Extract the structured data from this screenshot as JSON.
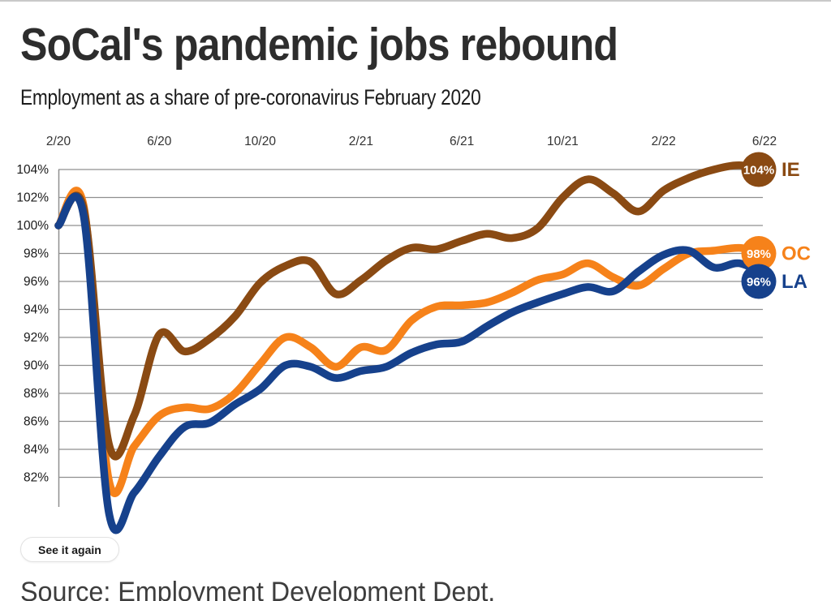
{
  "page": {
    "title": "SoCal's pandemic jobs rebound",
    "subtitle": "Employment as a share of pre-coronavirus February 2020",
    "replay_button": "See it again",
    "source": "Source: Employment Development Dept."
  },
  "colors": {
    "ie_brown": "#8a4a13",
    "oc_orange": "#f6821a",
    "la_navy": "#16418c",
    "grid": "#8f8f8f",
    "x_label": "#333333",
    "y_label": "#1a1a1a",
    "badge_text": "#ffffff"
  },
  "chart_data": {
    "type": "line",
    "title": "SoCal's pandemic jobs rebound",
    "subtitle": "Employment as a share of pre-coronavirus February 2020",
    "x_months": [
      "2/20",
      "3/20",
      "4/20",
      "5/20",
      "6/20",
      "7/20",
      "8/20",
      "9/20",
      "10/20",
      "11/20",
      "12/20",
      "1/21",
      "2/21",
      "3/21",
      "4/21",
      "5/21",
      "6/21",
      "7/21",
      "8/21",
      "9/21",
      "10/21",
      "11/21",
      "12/21",
      "1/22",
      "2/22",
      "3/22",
      "4/22",
      "5/22",
      "6/22"
    ],
    "x_ticks": [
      "2/20",
      "6/20",
      "10/20",
      "2/21",
      "6/21",
      "10/21",
      "2/22",
      "6/22"
    ],
    "x_tick_indices": [
      0,
      4,
      8,
      12,
      16,
      20,
      24,
      28
    ],
    "y_ticks": [
      "104%",
      "102%",
      "100%",
      "98%",
      "96%",
      "94%",
      "92%",
      "90%",
      "88%",
      "86%",
      "84%",
      "82%"
    ],
    "y_tick_values": [
      104,
      102,
      100,
      98,
      96,
      94,
      92,
      90,
      88,
      86,
      84,
      82
    ],
    "ylim": [
      79,
      105
    ],
    "grid": true,
    "legend_position": "right-end-badges",
    "series": [
      {
        "name": "IE",
        "badge": "104%",
        "end_value": 104,
        "color": "#8a4a13",
        "values": [
          100,
          101.2,
          84.4,
          86.4,
          92.2,
          91.0,
          91.9,
          93.5,
          95.9,
          97.1,
          97.4,
          95.1,
          96.1,
          97.5,
          98.4,
          98.3,
          98.9,
          99.4,
          99.1,
          99.8,
          102.0,
          103.3,
          102.3,
          101.0,
          102.5,
          103.4,
          104.0,
          104.3,
          104.0
        ]
      },
      {
        "name": "OC",
        "badge": "98%",
        "end_value": 98,
        "color": "#f6821a",
        "values": [
          100,
          101.4,
          81.8,
          84.2,
          86.4,
          87.0,
          86.9,
          88.0,
          90.1,
          92.0,
          91.3,
          89.9,
          91.3,
          91.1,
          93.2,
          94.2,
          94.3,
          94.5,
          95.2,
          96.1,
          96.5,
          97.3,
          96.3,
          95.7,
          96.9,
          98.0,
          98.2,
          98.4,
          98.1
        ]
      },
      {
        "name": "LA",
        "badge": "96%",
        "end_value": 96,
        "color": "#16418c",
        "values": [
          100,
          100.7,
          79.5,
          80.9,
          83.5,
          85.6,
          85.9,
          87.2,
          88.3,
          90.0,
          89.9,
          89.1,
          89.6,
          89.9,
          90.9,
          91.5,
          91.7,
          92.8,
          93.8,
          94.5,
          95.1,
          95.6,
          95.3,
          96.7,
          97.9,
          98.2,
          97.0,
          97.3,
          96.5
        ]
      }
    ],
    "draw_order": [
      "OC",
      "IE",
      "LA"
    ],
    "badge_order": [
      "IE",
      "OC",
      "LA"
    ]
  }
}
